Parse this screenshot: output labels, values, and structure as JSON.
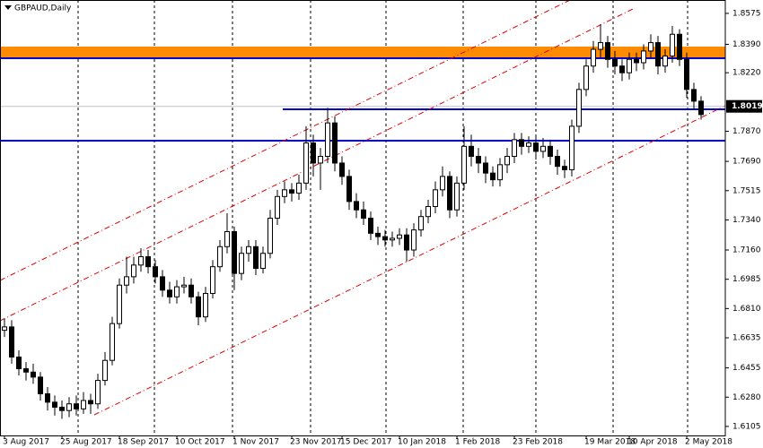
{
  "chart_data": {
    "type": "candlestick",
    "title": "GBPAUD,Daily",
    "categories": [
      "3 Aug 2017",
      null,
      null,
      null,
      null,
      null,
      null,
      null,
      "25 Aug 2017",
      null,
      null,
      null,
      null,
      null,
      null,
      null,
      "18 Sep 2017",
      null,
      null,
      null,
      null,
      null,
      null,
      null,
      "10 Oct 2017",
      null,
      null,
      null,
      null,
      null,
      null,
      null,
      "1 Nov 2017",
      null,
      null,
      null,
      null,
      null,
      null,
      null,
      "23 Nov 2017",
      null,
      null,
      null,
      null,
      null,
      null,
      "15 Dec 2017",
      null,
      null,
      null,
      null,
      null,
      null,
      null,
      "10 Jan 2018",
      null,
      null,
      null,
      null,
      null,
      null,
      null,
      "1 Feb 2018",
      null,
      null,
      null,
      null,
      null,
      null,
      null,
      "23 Feb 2018",
      null,
      null,
      null,
      null,
      null,
      null,
      null,
      null,
      null,
      "19 Mar 2018",
      null,
      null,
      null,
      null,
      null,
      "10 Apr 2018",
      null,
      null,
      null,
      null,
      null,
      null,
      null,
      "2 May 2018",
      null,
      null
    ],
    "open": [
      1.668,
      1.67,
      1.652,
      1.645,
      1.643,
      1.64,
      1.63,
      1.625,
      1.622,
      1.62,
      1.624,
      1.621,
      1.626,
      1.624,
      1.638,
      1.65,
      1.672,
      1.695,
      1.7,
      1.707,
      1.712,
      1.706,
      1.7,
      1.692,
      1.688,
      1.694,
      1.695,
      1.688,
      1.676,
      1.69,
      1.706,
      1.718,
      1.727,
      1.702,
      1.714,
      1.718,
      1.705,
      1.714,
      1.735,
      1.748,
      1.752,
      1.75,
      1.756,
      1.78,
      1.768,
      1.772,
      1.792,
      1.768,
      1.76,
      1.745,
      1.74,
      1.735,
      1.726,
      1.724,
      1.722,
      1.723,
      1.725,
      1.716,
      1.728,
      1.736,
      1.742,
      1.752,
      1.76,
      1.74,
      1.756,
      1.778,
      1.772,
      1.768,
      1.762,
      1.758,
      1.767,
      1.772,
      1.782,
      1.778,
      1.78,
      1.775,
      1.778,
      1.772,
      1.766,
      1.764,
      1.79,
      1.812,
      1.826,
      1.836,
      1.84,
      1.83,
      1.826,
      1.822,
      1.83,
      1.828,
      1.835,
      1.84,
      1.826,
      1.832,
      1.845,
      1.83,
      1.812,
      1.805
    ],
    "high": [
      1.675,
      1.674,
      1.656,
      1.649,
      1.648,
      1.643,
      1.634,
      1.629,
      1.626,
      1.628,
      1.629,
      1.631,
      1.63,
      1.642,
      1.655,
      1.676,
      1.699,
      1.712,
      1.712,
      1.717,
      1.716,
      1.71,
      1.704,
      1.697,
      1.698,
      1.7,
      1.699,
      1.691,
      1.694,
      1.71,
      1.722,
      1.738,
      1.73,
      1.718,
      1.722,
      1.722,
      1.718,
      1.74,
      1.752,
      1.757,
      1.756,
      1.761,
      1.79,
      1.785,
      1.777,
      1.801,
      1.796,
      1.772,
      1.764,
      1.75,
      1.745,
      1.739,
      1.73,
      1.728,
      1.727,
      1.729,
      1.729,
      1.732,
      1.74,
      1.746,
      1.757,
      1.766,
      1.763,
      1.76,
      1.79,
      1.785,
      1.777,
      1.772,
      1.766,
      1.771,
      1.777,
      1.786,
      1.786,
      1.784,
      1.784,
      1.783,
      1.782,
      1.776,
      1.77,
      1.794,
      1.816,
      1.83,
      1.841,
      1.851,
      1.844,
      1.835,
      1.83,
      1.834,
      1.834,
      1.839,
      1.845,
      1.844,
      1.836,
      1.85,
      1.848,
      1.834,
      1.816,
      1.808
    ],
    "low": [
      1.664,
      1.648,
      1.641,
      1.638,
      1.636,
      1.626,
      1.62,
      1.617,
      1.615,
      1.616,
      1.617,
      1.618,
      1.618,
      1.621,
      1.635,
      1.647,
      1.669,
      1.69,
      1.696,
      1.703,
      1.702,
      1.696,
      1.688,
      1.684,
      1.684,
      1.69,
      1.684,
      1.671,
      1.673,
      1.687,
      1.703,
      1.714,
      1.692,
      1.698,
      1.709,
      1.701,
      1.702,
      1.711,
      1.731,
      1.744,
      1.745,
      1.746,
      1.752,
      1.76,
      1.752,
      1.768,
      1.763,
      1.755,
      1.74,
      1.735,
      1.731,
      1.722,
      1.719,
      1.718,
      1.718,
      1.719,
      1.709,
      1.712,
      1.724,
      1.732,
      1.738,
      1.748,
      1.735,
      1.736,
      1.752,
      1.766,
      1.762,
      1.756,
      1.754,
      1.754,
      1.762,
      1.768,
      1.773,
      1.774,
      1.77,
      1.771,
      1.767,
      1.761,
      1.759,
      1.76,
      1.786,
      1.808,
      1.822,
      1.831,
      1.825,
      1.821,
      1.817,
      1.818,
      1.823,
      1.824,
      1.831,
      1.821,
      1.822,
      1.828,
      1.826,
      1.807,
      1.8,
      1.794
    ],
    "close": [
      1.67,
      1.652,
      1.645,
      1.643,
      1.64,
      1.63,
      1.625,
      1.622,
      1.62,
      1.624,
      1.621,
      1.626,
      1.624,
      1.638,
      1.65,
      1.672,
      1.695,
      1.7,
      1.707,
      1.712,
      1.706,
      1.7,
      1.692,
      1.688,
      1.694,
      1.695,
      1.688,
      1.676,
      1.69,
      1.706,
      1.718,
      1.727,
      1.702,
      1.714,
      1.718,
      1.705,
      1.714,
      1.735,
      1.748,
      1.752,
      1.75,
      1.756,
      1.78,
      1.768,
      1.772,
      1.792,
      1.768,
      1.76,
      1.745,
      1.74,
      1.735,
      1.726,
      1.724,
      1.722,
      1.723,
      1.725,
      1.716,
      1.728,
      1.736,
      1.742,
      1.752,
      1.76,
      1.74,
      1.756,
      1.778,
      1.772,
      1.768,
      1.762,
      1.758,
      1.767,
      1.772,
      1.782,
      1.778,
      1.78,
      1.775,
      1.778,
      1.772,
      1.766,
      1.764,
      1.79,
      1.812,
      1.826,
      1.836,
      1.84,
      1.83,
      1.826,
      1.822,
      1.83,
      1.828,
      1.835,
      1.84,
      1.826,
      1.832,
      1.845,
      1.83,
      1.812,
      1.805,
      1.797
    ],
    "ylim": [
      1.6051,
      1.8655
    ],
    "yticks": [
      1.8575,
      {
        "value": 1.839,
        "label": "1.8390"
      },
      {
        "value": 1.822,
        "label": "1.8220"
      },
      {
        "value": 1.787,
        "label": "1.7870"
      },
      {
        "value": 1.769,
        "label": "1.7690"
      },
      1.7515,
      {
        "value": 1.734,
        "label": "1.7340"
      },
      {
        "value": 1.716,
        "label": "1.7160"
      },
      1.6985,
      {
        "value": 1.681,
        "label": "1.6810"
      },
      1.6635,
      1.6455,
      {
        "value": 1.628,
        "label": "1.6280"
      },
      1.6105
    ],
    "current_price": 1.8019,
    "up_color": "#ffffff",
    "down_color": "#000000"
  }
}
